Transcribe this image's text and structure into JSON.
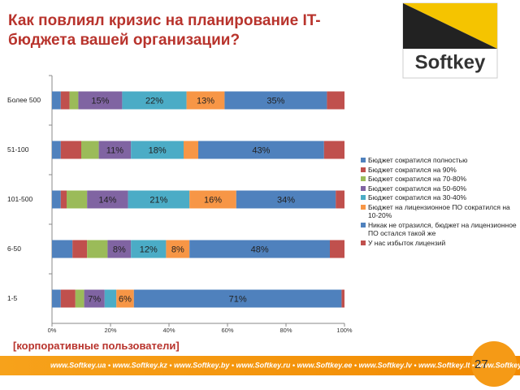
{
  "chart_data": {
    "type": "stacked_barh",
    "title": "Как повлиял кризис на планирование IT-бюджета вашей организации?",
    "subtitle": "[корпоративные пользователи]",
    "categories": [
      "Более 500",
      "51-100",
      "101-500",
      "6-50",
      "1-5"
    ],
    "series": [
      {
        "name": "Бюджет сократился полностью",
        "color": "#4f81bd",
        "values": [
          3,
          3,
          3,
          7,
          3
        ]
      },
      {
        "name": "Бюджет сократился на 90%",
        "color": "#c0504d",
        "values": [
          3,
          7,
          2,
          5,
          5
        ]
      },
      {
        "name": "Бюджет сократился на 70-80%",
        "color": "#9bbb59",
        "values": [
          3,
          6,
          7,
          7,
          3
        ]
      },
      {
        "name": "Бюджет сократился на 50-60%",
        "color": "#8064a2",
        "values": [
          15,
          11,
          14,
          8,
          7
        ],
        "value_labels": [
          "15%",
          "11%",
          "14%",
          "8%",
          "7%"
        ]
      },
      {
        "name": "Бюджет сократился на 30-40%",
        "color": "#4bacc6",
        "values": [
          22,
          18,
          21,
          12,
          4
        ],
        "value_labels": [
          "22%",
          "18%",
          "21%",
          "12%",
          null
        ]
      },
      {
        "name": "Бюджет на лицензионное ПО сократился на 10-20%",
        "color": "#f79646",
        "values": [
          13,
          5,
          16,
          8,
          6
        ],
        "value_labels": [
          "13%",
          null,
          "16%",
          "8%",
          "6%"
        ]
      },
      {
        "name": "Никак не отразился, бюджет на лицензионное ПО остался такой же",
        "color": "#4f81bd",
        "values": [
          35,
          43,
          34,
          48,
          71
        ],
        "value_labels": [
          "35%",
          "43%",
          "34%",
          "48%",
          "71%"
        ]
      },
      {
        "name": "У нас избыток лицензий",
        "color": "#c0504d",
        "values": [
          6,
          7,
          3,
          5,
          1
        ]
      }
    ],
    "xlim": [
      0,
      100
    ],
    "xticks": [
      {
        "value": 0,
        "label": "0%"
      },
      {
        "value": 20,
        "label": "20%"
      },
      {
        "value": 40,
        "label": "40%"
      },
      {
        "value": 60,
        "label": "60%"
      },
      {
        "value": 80,
        "label": "80%"
      },
      {
        "value": 100,
        "label": "100%"
      }
    ],
    "grid": false
  },
  "logo": {
    "text": "Softkey"
  },
  "footer": {
    "text": "www.Softkey.ua • www.Softkey.kz • www.Softkey.by • www.Softkey.ru • www.Softkey.ee • www.Softkey.lv • www.Softkey.lt • www.Softkey.pl"
  },
  "page_number": "27"
}
